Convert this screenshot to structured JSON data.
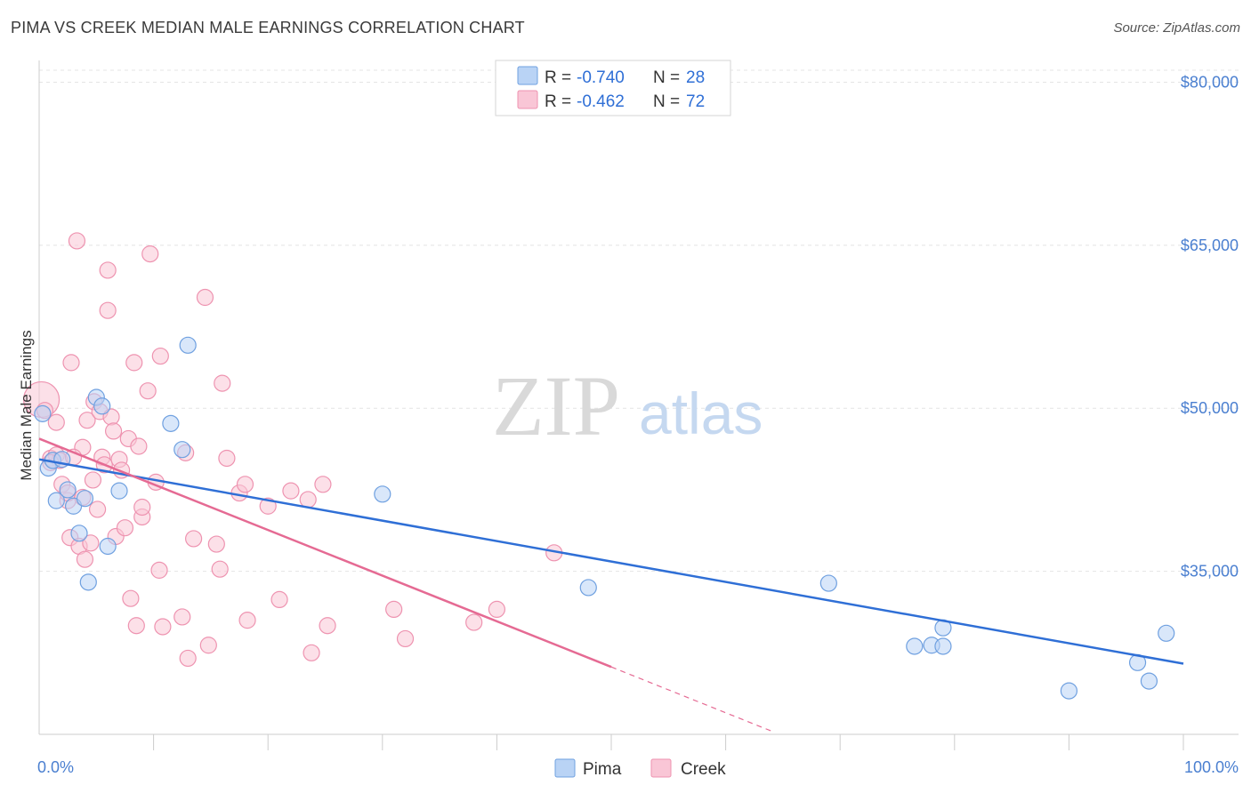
{
  "title": "PIMA VS CREEK MEDIAN MALE EARNINGS CORRELATION CHART",
  "source": "Source: ZipAtlas.com",
  "watermark": {
    "part1": "ZIP",
    "part2": "atlas"
  },
  "colors": {
    "pima_fill": "#b9d3f5",
    "pima_stroke": "#6fa0e0",
    "pima_line": "#2f6fd6",
    "creek_fill": "#f9c6d6",
    "creek_stroke": "#ee93b0",
    "creek_line": "#e56a93",
    "axis_text": "#4a7fd0",
    "grid": "#e4e4e4"
  },
  "legend": {
    "rows": [
      {
        "series": "pima",
        "r_label": "R = ",
        "r_value": "-0.740",
        "n_label": "N = ",
        "n_value": "28"
      },
      {
        "series": "creek",
        "r_label": "R = ",
        "r_value": "-0.462",
        "n_label": "N = ",
        "n_value": "72"
      }
    ]
  },
  "bottom_legend": [
    {
      "series": "pima",
      "label": "Pima"
    },
    {
      "series": "creek",
      "label": "Creek"
    }
  ],
  "chart_data": {
    "type": "scatter",
    "title": "PIMA VS CREEK MEDIAN MALE EARNINGS CORRELATION CHART",
    "xlabel": "",
    "ylabel": "Median Male Earnings",
    "xlim": [
      0,
      100
    ],
    "ylim": [
      20000,
      82000
    ],
    "x_tick_labels": [
      {
        "value": 0,
        "label": "0.0%"
      },
      {
        "value": 100,
        "label": "100.0%"
      }
    ],
    "y_ticks": [
      {
        "value": 35000,
        "label": "$35,000"
      },
      {
        "value": 50000,
        "label": "$50,000"
      },
      {
        "value": 65000,
        "label": "$65,000"
      },
      {
        "value": 80000,
        "label": "$80,000"
      }
    ],
    "series": [
      {
        "name": "Pima",
        "key": "pima",
        "points": [
          [
            0.3,
            49500
          ],
          [
            0.8,
            44500
          ],
          [
            1.2,
            45200
          ],
          [
            2.0,
            45300
          ],
          [
            1.5,
            41500
          ],
          [
            2.5,
            42500
          ],
          [
            3.0,
            41000
          ],
          [
            3.5,
            38500
          ],
          [
            4.0,
            41700
          ],
          [
            4.3,
            34000
          ],
          [
            5.0,
            51000
          ],
          [
            5.5,
            50200
          ],
          [
            6.0,
            37300
          ],
          [
            7.0,
            42400
          ],
          [
            11.5,
            48600
          ],
          [
            12.5,
            46200
          ],
          [
            13.0,
            55800
          ],
          [
            30.0,
            42100
          ],
          [
            48.0,
            33500
          ],
          [
            69.0,
            33900
          ],
          [
            76.5,
            28100
          ],
          [
            78.0,
            28200
          ],
          [
            79.0,
            29800
          ],
          [
            79.0,
            28100
          ],
          [
            90.0,
            24000
          ],
          [
            96.0,
            26600
          ],
          [
            97.0,
            24900
          ],
          [
            98.5,
            29300
          ]
        ],
        "trend": {
          "x0": 0,
          "y0": 45300,
          "x1": 100,
          "y1": 26500
        }
      },
      {
        "name": "Creek",
        "key": "creek",
        "points": [
          [
            0.2,
            50800
          ],
          [
            0.5,
            49800
          ],
          [
            1.0,
            45400
          ],
          [
            1.5,
            45700
          ],
          [
            1.8,
            45200
          ],
          [
            1.5,
            48700
          ],
          [
            2.0,
            43000
          ],
          [
            2.5,
            41500
          ],
          [
            2.5,
            42200
          ],
          [
            2.7,
            38100
          ],
          [
            2.8,
            54200
          ],
          [
            3.3,
            65400
          ],
          [
            3.5,
            37300
          ],
          [
            3.8,
            46400
          ],
          [
            3.8,
            41800
          ],
          [
            4.0,
            36100
          ],
          [
            4.2,
            48900
          ],
          [
            4.5,
            37600
          ],
          [
            4.7,
            43400
          ],
          [
            4.8,
            50600
          ],
          [
            5.1,
            40700
          ],
          [
            5.3,
            49700
          ],
          [
            5.5,
            45500
          ],
          [
            5.7,
            44800
          ],
          [
            6.0,
            62700
          ],
          [
            6.0,
            59000
          ],
          [
            6.3,
            49200
          ],
          [
            6.5,
            47900
          ],
          [
            6.7,
            38200
          ],
          [
            7.0,
            45300
          ],
          [
            7.2,
            44300
          ],
          [
            7.5,
            39000
          ],
          [
            7.8,
            47200
          ],
          [
            8.0,
            32500
          ],
          [
            8.3,
            54200
          ],
          [
            8.5,
            30000
          ],
          [
            8.7,
            46500
          ],
          [
            9.0,
            40000
          ],
          [
            9.0,
            40900
          ],
          [
            9.5,
            51600
          ],
          [
            9.7,
            64200
          ],
          [
            10.2,
            43200
          ],
          [
            10.5,
            35100
          ],
          [
            10.6,
            54800
          ],
          [
            10.8,
            29900
          ],
          [
            12.5,
            30800
          ],
          [
            12.8,
            45900
          ],
          [
            13.0,
            27000
          ],
          [
            13.5,
            38000
          ],
          [
            14.5,
            60200
          ],
          [
            14.8,
            28200
          ],
          [
            15.5,
            37500
          ],
          [
            15.8,
            35200
          ],
          [
            16.0,
            52300
          ],
          [
            16.4,
            45400
          ],
          [
            17.5,
            42200
          ],
          [
            18.0,
            43000
          ],
          [
            18.2,
            30500
          ],
          [
            20.0,
            41000
          ],
          [
            21.0,
            32400
          ],
          [
            22.0,
            42400
          ],
          [
            23.5,
            41600
          ],
          [
            23.8,
            27500
          ],
          [
            24.8,
            43000
          ],
          [
            25.2,
            30000
          ],
          [
            31.0,
            31500
          ],
          [
            32.0,
            28800
          ],
          [
            38.0,
            30300
          ],
          [
            40.0,
            31500
          ],
          [
            45.0,
            36700
          ],
          [
            1.0,
            45000
          ],
          [
            3.0,
            45500
          ]
        ],
        "trend": {
          "x0": 0,
          "y0": 47200,
          "x1": 50,
          "y1": 26200
        },
        "trend_extension": {
          "x0": 50,
          "y0": 26200,
          "x1": 64,
          "y1": 20300
        }
      }
    ]
  }
}
